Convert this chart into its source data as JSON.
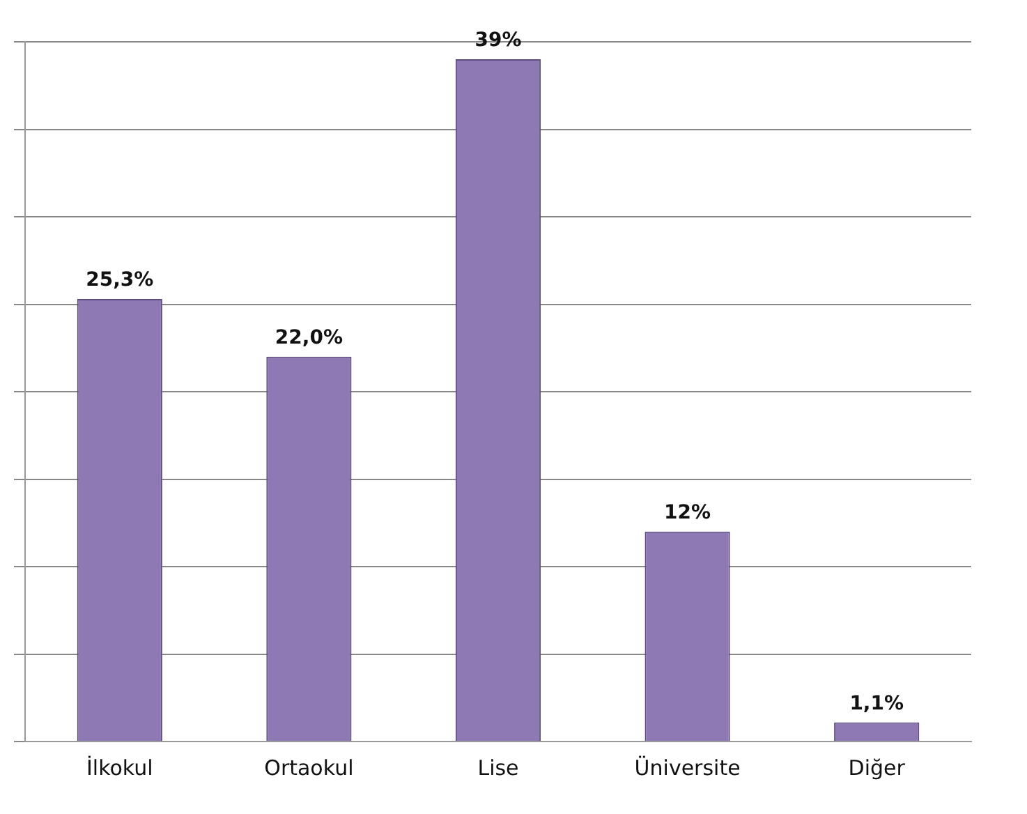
{
  "chart_data": {
    "type": "bar",
    "categories": [
      "İlkokul",
      "Ortaokul",
      "Lise",
      "Üniversite",
      "Diğer"
    ],
    "values": [
      25.3,
      22.0,
      39,
      12,
      1.1
    ],
    "value_labels": [
      "25,3%",
      "22,0%",
      "39%",
      "12%",
      "1,1%"
    ],
    "color": "#8e79b5",
    "ylim": [
      0,
      40
    ],
    "yticks": [
      {
        "value": 0,
        "label": null
      },
      {
        "value": 5,
        "label": null
      },
      {
        "value": 10,
        "label": null
      },
      {
        "value": 15,
        "label": null
      },
      {
        "value": 20,
        "label": null
      },
      {
        "value": 25,
        "label": null
      },
      {
        "value": 30,
        "label": null
      },
      {
        "value": 35,
        "label": null
      },
      {
        "value": 40,
        "label": null
      }
    ],
    "tick_labels": "x",
    "grid": "y"
  }
}
